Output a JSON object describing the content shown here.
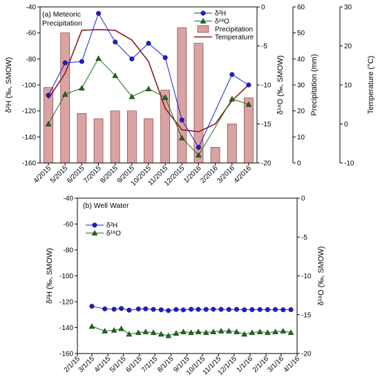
{
  "chart_data": [
    {
      "type": "bar+line",
      "panel_label": "(a) Meteoric",
      "panel_label_line2": "Precipitation",
      "categories": [
        "4/2015",
        "5/2015",
        "6/2015",
        "7/2015",
        "8/2015",
        "9/2015",
        "10/2015",
        "11/2015",
        "12/2015",
        "1/2016",
        "2/2016",
        "3/2016",
        "4/2016"
      ],
      "axes": {
        "h2": {
          "label": "δ²H (‰, SMOW)",
          "ylim": [
            -160,
            -40
          ],
          "ticks": [
            -160,
            -140,
            -120,
            -100,
            -80,
            -60,
            -40
          ]
        },
        "o18": {
          "label": "δ¹⁸O (‰, SMOW)",
          "ylim": [
            -20,
            0
          ],
          "ticks": [
            -20,
            -15,
            -10,
            -5,
            0
          ]
        },
        "precip": {
          "label": "Precipitation (mm)",
          "ylim": [
            0,
            60
          ],
          "ticks": [
            0,
            10,
            20,
            30,
            40,
            50,
            60
          ]
        },
        "temp": {
          "label": "Temperature (°C)",
          "ylim": [
            -10,
            30
          ],
          "ticks": [
            -10,
            0,
            10,
            20,
            30
          ]
        }
      },
      "series": [
        {
          "name": "δ²H",
          "axis": "h2",
          "kind": "line-marker",
          "marker": "circle",
          "color": "#1c1cd6",
          "values": [
            -108,
            -83,
            -82,
            -45,
            -67,
            -80,
            -68,
            -79,
            -127,
            -148,
            null,
            -92,
            -100
          ]
        },
        {
          "name": "δ¹⁸O",
          "axis": "o18",
          "kind": "line-marker",
          "marker": "triangle",
          "color": "#1a6e1a",
          "values": [
            -15,
            -11.2,
            -10.4,
            -6.6,
            -8.8,
            -11.5,
            -10.5,
            -11.6,
            -16.8,
            -19,
            null,
            -11.8,
            -12.5
          ]
        },
        {
          "name": "Precipitation",
          "axis": "precip",
          "kind": "bar",
          "color": "#d9a3a3",
          "stroke": "#8b3a3a",
          "values": [
            29,
            50,
            19,
            17,
            20,
            20,
            17,
            28,
            52,
            46,
            6,
            15,
            25
          ]
        },
        {
          "name": "Temperature",
          "axis": "temp",
          "kind": "line",
          "color": "#8b1a1a",
          "values": [
            6.5,
            13,
            24,
            24.2,
            24,
            21.5,
            16,
            4,
            -1.5,
            -2,
            0,
            6,
            10
          ]
        }
      ]
    },
    {
      "type": "line",
      "panel_label": "(b) Well Water",
      "x_tick_labels": [
        "2/1/15",
        "3/1/15",
        "4/1/15",
        "5/1/15",
        "6/1/15",
        "7/1/15",
        "8/1/15",
        "9/1/15",
        "10/1/15",
        "11/1/15",
        "12/1/15",
        "1/1/16",
        "2/1/16",
        "3/1/16",
        "4/1/16"
      ],
      "x_tick_dates": [
        "2015-02-01",
        "2015-03-01",
        "2015-04-01",
        "2015-05-01",
        "2015-06-01",
        "2015-07-01",
        "2015-08-01",
        "2015-09-01",
        "2015-10-01",
        "2015-11-01",
        "2015-12-01",
        "2016-01-01",
        "2016-02-01",
        "2016-03-01",
        "2016-04-01"
      ],
      "axes": {
        "h2": {
          "label": "δ²H (‰, SMOW)",
          "ylim": [
            -160,
            -40
          ],
          "ticks": [
            -160,
            -140,
            -120,
            -100,
            -80,
            -60,
            -40
          ]
        },
        "o18": {
          "label": "δ¹⁸O (‰, SMOW)",
          "ylim": [
            -20,
            0
          ],
          "ticks": [
            -20,
            -15,
            -10,
            -5,
            0
          ]
        }
      },
      "series": [
        {
          "name": "δ²H",
          "axis": "h2",
          "marker": "circle",
          "color": "#1c1cd6",
          "points": [
            [
              "2015-03-01",
              -123.5
            ],
            [
              "2015-03-26",
              -125.5
            ],
            [
              "2015-04-13",
              -125.8
            ],
            [
              "2015-04-27",
              -125.2
            ],
            [
              "2015-05-12",
              -126.5
            ],
            [
              "2015-05-30",
              -125.6
            ],
            [
              "2015-06-13",
              -125.5
            ],
            [
              "2015-06-28",
              -125.9
            ],
            [
              "2015-07-13",
              -126.2
            ],
            [
              "2015-07-27",
              -126.8
            ],
            [
              "2015-08-11",
              -126
            ],
            [
              "2015-08-25",
              -126.3
            ],
            [
              "2015-09-09",
              -125.8
            ],
            [
              "2015-09-23",
              -125.9
            ],
            [
              "2015-10-08",
              -125.9
            ],
            [
              "2015-10-22",
              -125.8
            ],
            [
              "2015-11-06",
              -125.9
            ],
            [
              "2015-11-21",
              -126
            ],
            [
              "2015-12-06",
              -125.9
            ],
            [
              "2015-12-21",
              -126.2
            ],
            [
              "2016-01-05",
              -126.1
            ],
            [
              "2016-01-20",
              -126
            ],
            [
              "2016-02-04",
              -126.1
            ],
            [
              "2016-02-19",
              -126
            ],
            [
              "2016-03-05",
              -126.2
            ],
            [
              "2016-03-20",
              -126.1
            ]
          ]
        },
        {
          "name": "δ¹⁸O",
          "axis": "o18",
          "marker": "triangle",
          "color": "#1a6e1a",
          "points": [
            [
              "2015-03-01",
              -16.5
            ],
            [
              "2015-03-26",
              -17.1
            ],
            [
              "2015-04-13",
              -17
            ],
            [
              "2015-04-27",
              -16.8
            ],
            [
              "2015-05-12",
              -17.5
            ],
            [
              "2015-05-30",
              -17.3
            ],
            [
              "2015-06-13",
              -17.2
            ],
            [
              "2015-06-28",
              -17.3
            ],
            [
              "2015-07-13",
              -17.5
            ],
            [
              "2015-07-27",
              -17.7
            ],
            [
              "2015-08-11",
              -17.4
            ],
            [
              "2015-08-25",
              -17.2
            ],
            [
              "2015-09-09",
              -17.3
            ],
            [
              "2015-09-23",
              -17.2
            ],
            [
              "2015-10-08",
              -17.3
            ],
            [
              "2015-10-22",
              -17.2
            ],
            [
              "2015-11-06",
              -17.1
            ],
            [
              "2015-11-21",
              -17.1
            ],
            [
              "2015-12-06",
              -17.2
            ],
            [
              "2015-12-21",
              -17.5
            ],
            [
              "2016-01-05",
              -17.3
            ],
            [
              "2016-01-20",
              -17.2
            ],
            [
              "2016-02-04",
              -17.3
            ],
            [
              "2016-02-19",
              -17.2
            ],
            [
              "2016-03-05",
              -17.1
            ],
            [
              "2016-03-20",
              -17.3
            ]
          ]
        }
      ]
    }
  ]
}
